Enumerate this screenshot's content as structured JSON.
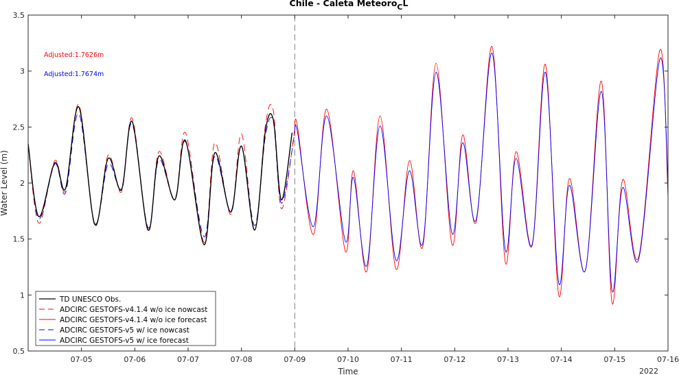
{
  "chart_data": {
    "type": "line",
    "title_main": "Chile - Caleta Meteoro",
    "title_sub": "C",
    "title_tail": "L",
    "xlabel": "Time",
    "ylabel": "Water Level (m)",
    "year_label": "2022",
    "xlim": [
      4.0,
      16.0
    ],
    "ylim": [
      0.5,
      3.5
    ],
    "xticks": [
      5,
      6,
      7,
      8,
      9,
      10,
      11,
      12,
      13,
      14,
      15,
      16
    ],
    "xtick_labels": [
      "07-05",
      "07-06",
      "07-07",
      "07-08",
      "07-09",
      "07-10",
      "07-11",
      "07-12",
      "07-13",
      "07-14",
      "07-15",
      "07-16"
    ],
    "yticks": [
      0.5,
      1,
      1.5,
      2,
      2.5,
      3,
      3.5
    ],
    "ytick_labels": [
      "0.5",
      "1",
      "1.5",
      "2",
      "2.5",
      "3",
      "3.5"
    ],
    "nowcast_end": 9.0,
    "annotations": [
      {
        "text": "Adjusted:1.7626m",
        "color": "#ff0000"
      },
      {
        "text": "Adjusted:1.7674m",
        "color": "#0000ff"
      }
    ],
    "legend_position": "bottom-left",
    "series": [
      {
        "name": "TD UNESCO Obs.",
        "color": "#000000",
        "dash": "solid",
        "x": [
          4.0,
          4.2,
          4.5,
          4.7,
          4.95,
          5.25,
          5.5,
          5.75,
          5.95,
          6.25,
          6.45,
          6.75,
          6.95,
          7.3,
          7.5,
          7.8,
          8.0,
          8.25,
          8.45,
          8.6,
          8.75,
          8.95
        ],
        "y": [
          2.35,
          1.7,
          2.18,
          1.95,
          2.68,
          1.63,
          2.22,
          1.94,
          2.55,
          1.58,
          2.24,
          1.85,
          2.38,
          1.45,
          2.27,
          1.74,
          2.33,
          1.58,
          2.47,
          2.56,
          1.85,
          2.45
        ]
      },
      {
        "name": "ADCIRC GESTOFS-v4.1.4 w/o ice nowcast",
        "color": "#ff0000",
        "dash": "dashed",
        "x": [
          4.0,
          4.2,
          4.5,
          4.7,
          4.95,
          5.25,
          5.5,
          5.75,
          5.95,
          6.25,
          6.45,
          6.75,
          6.95,
          7.3,
          7.5,
          7.8,
          8.0,
          8.25,
          8.45,
          8.6,
          8.75,
          9.0
        ],
        "y": [
          2.35,
          1.64,
          2.2,
          1.93,
          2.7,
          1.62,
          2.25,
          1.92,
          2.58,
          1.57,
          2.28,
          1.85,
          2.45,
          1.47,
          2.36,
          1.72,
          2.44,
          1.58,
          2.52,
          2.64,
          1.77,
          2.48
        ]
      },
      {
        "name": "ADCIRC GESTOFS-v4.1.4 w/o ice forecast",
        "color": "#ff0000",
        "dash": "solid",
        "x": [
          9.0,
          9.05,
          9.35,
          9.6,
          9.95,
          10.1,
          10.35,
          10.6,
          10.9,
          11.15,
          11.4,
          11.65,
          11.95,
          12.15,
          12.4,
          12.7,
          12.95,
          13.15,
          13.45,
          13.7,
          13.95,
          14.15,
          14.45,
          14.75,
          14.95,
          15.15,
          15.45,
          15.85,
          16.0
        ],
        "y": [
          2.48,
          2.51,
          1.54,
          2.66,
          1.39,
          2.11,
          1.21,
          2.6,
          1.23,
          2.2,
          1.43,
          3.07,
          1.45,
          2.43,
          1.65,
          3.22,
          1.29,
          2.28,
          1.45,
          3.06,
          1.0,
          2.04,
          1.22,
          2.91,
          0.93,
          2.03,
          1.34,
          3.19,
          1.87
        ]
      },
      {
        "name": "ADCIRC GESTOFS-v5 w/ ice nowcast",
        "color": "#0000ff",
        "dash": "dashed",
        "x": [
          4.0,
          4.2,
          4.5,
          4.7,
          4.95,
          5.25,
          5.5,
          5.75,
          5.95,
          6.25,
          6.45,
          6.75,
          6.95,
          7.3,
          7.5,
          7.8,
          8.0,
          8.25,
          8.45,
          8.6,
          8.75,
          9.0
        ],
        "y": [
          2.35,
          1.68,
          2.17,
          1.91,
          2.62,
          1.64,
          2.17,
          1.95,
          2.53,
          1.6,
          2.21,
          1.86,
          2.37,
          1.52,
          2.24,
          1.75,
          2.33,
          1.62,
          2.42,
          2.54,
          1.82,
          2.45
        ]
      },
      {
        "name": "ADCIRC GESTOFS-v5 w/ ice forecast",
        "color": "#0000ff",
        "dash": "solid",
        "x": [
          9.0,
          9.05,
          9.35,
          9.6,
          9.95,
          10.1,
          10.35,
          10.6,
          10.9,
          11.15,
          11.4,
          11.65,
          11.95,
          12.15,
          12.4,
          12.7,
          12.95,
          13.15,
          13.45,
          13.7,
          13.95,
          14.15,
          14.45,
          14.75,
          14.95,
          15.15,
          15.45,
          15.85,
          16.0
        ],
        "y": [
          2.45,
          2.46,
          1.61,
          2.6,
          1.48,
          2.05,
          1.26,
          2.51,
          1.31,
          2.11,
          1.46,
          2.99,
          1.55,
          2.36,
          1.67,
          3.16,
          1.4,
          2.22,
          1.44,
          2.99,
          1.11,
          1.98,
          1.22,
          2.82,
          1.04,
          1.96,
          1.32,
          3.11,
          1.98
        ]
      }
    ]
  }
}
